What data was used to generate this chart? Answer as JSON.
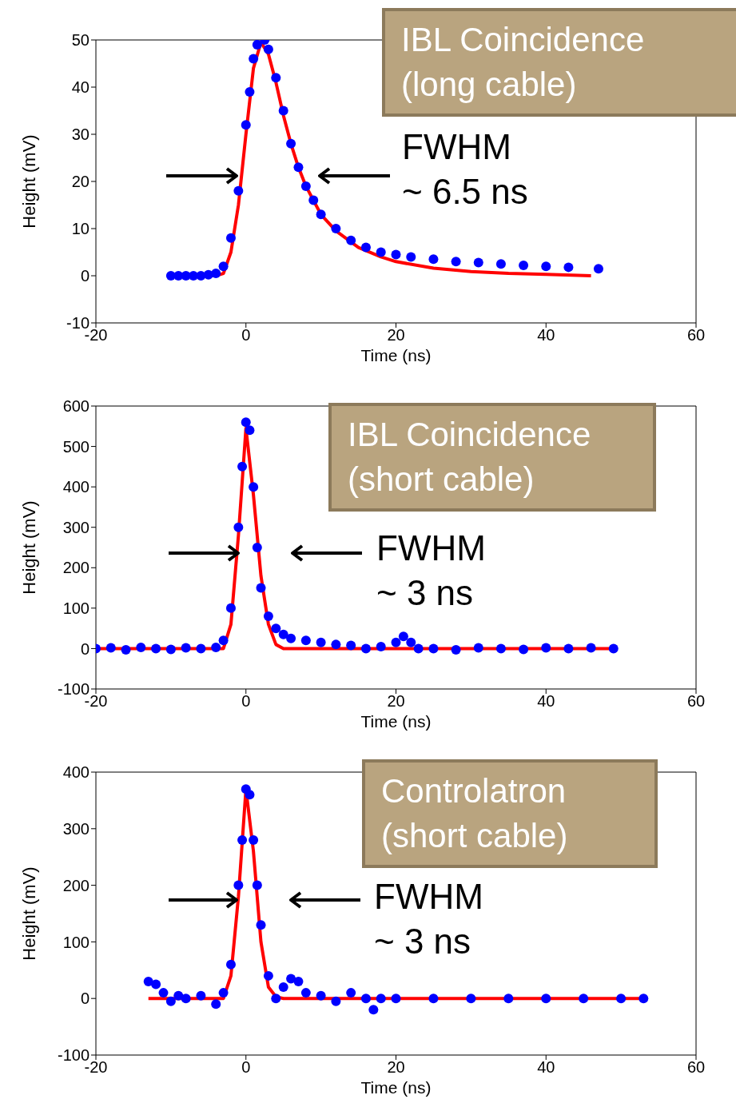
{
  "chart_data": [
    {
      "type": "scatter",
      "xlabel": "Time (ns)",
      "ylabel": "Height (mV)",
      "xlim": [
        -20,
        60
      ],
      "xticks": [
        -20,
        0,
        20,
        40,
        60
      ],
      "ylim": [
        -10,
        50
      ],
      "yticks": [
        -10,
        0,
        10,
        20,
        30,
        40,
        50
      ],
      "grid": false,
      "annotations": [
        "IBL Coincidence\n(long cable)",
        "FWHM\n~ 6.5 ns"
      ],
      "series": [
        {
          "type": "scatter",
          "color": "#0000ff",
          "marker": "circle",
          "x": [
            -10,
            -9,
            -8,
            -7,
            -6,
            -5,
            -4,
            -3,
            -2,
            -1,
            0,
            0.5,
            1,
            1.5,
            2.5,
            3,
            4,
            5,
            6,
            7,
            8,
            9,
            10,
            12,
            14,
            16,
            18,
            20,
            22,
            25,
            28,
            31,
            34,
            37,
            40,
            43,
            47
          ],
          "values": [
            0,
            0,
            0,
            0,
            0,
            0.2,
            0.5,
            2,
            8,
            18,
            32,
            39,
            46,
            49,
            50,
            48,
            42,
            35,
            28,
            23,
            19,
            16,
            13,
            10,
            7.5,
            6,
            5,
            4.5,
            4,
            3.5,
            3,
            2.8,
            2.5,
            2.2,
            2,
            1.8,
            1.5
          ]
        },
        {
          "type": "line",
          "color": "#ff0000",
          "marker": "none",
          "x": [
            -10,
            -4,
            -3,
            -2,
            -1,
            0,
            1,
            2,
            3,
            4,
            5,
            6,
            7,
            8,
            10,
            12,
            15,
            18,
            20,
            25,
            30,
            35,
            40,
            46
          ],
          "values": [
            0,
            0,
            0.5,
            5,
            15,
            30,
            44,
            49.5,
            47,
            41,
            34,
            28,
            23,
            19,
            13,
            9.5,
            6,
            4,
            3,
            1.6,
            0.9,
            0.5,
            0.3,
            0
          ]
        }
      ]
    },
    {
      "type": "scatter",
      "xlabel": "Time (ns)",
      "ylabel": "Height (mV)",
      "xlim": [
        -20,
        60
      ],
      "xticks": [
        -20,
        0,
        20,
        40,
        60
      ],
      "ylim": [
        -100,
        600
      ],
      "yticks": [
        -100,
        0,
        100,
        200,
        300,
        400,
        500,
        600
      ],
      "grid": false,
      "annotations": [
        "IBL Coincidence\n(short cable)",
        "FWHM\n~ 3 ns"
      ],
      "series": [
        {
          "type": "scatter",
          "color": "#0000ff",
          "marker": "circle",
          "x": [
            -20,
            -18,
            -16,
            -14,
            -12,
            -10,
            -8,
            -6,
            -4,
            -3,
            -2,
            -1,
            -0.5,
            0,
            0.5,
            1,
            1.5,
            2,
            3,
            4,
            5,
            6,
            8,
            10,
            12,
            14,
            16,
            18,
            20,
            21,
            22,
            23,
            25,
            28,
            31,
            34,
            37,
            40,
            43,
            46,
            49
          ],
          "values": [
            0,
            2,
            -3,
            3,
            0,
            -2,
            2,
            0,
            3,
            20,
            100,
            300,
            450,
            560,
            540,
            400,
            250,
            150,
            80,
            50,
            35,
            25,
            20,
            15,
            10,
            8,
            0,
            5,
            15,
            30,
            15,
            0,
            0,
            -3,
            2,
            0,
            -2,
            2,
            0,
            2,
            0
          ]
        },
        {
          "type": "line",
          "color": "#ff0000",
          "marker": "none",
          "x": [
            -20,
            -3,
            -2,
            -1,
            0,
            1,
            2,
            3,
            4,
            5,
            49
          ],
          "values": [
            0,
            0,
            60,
            280,
            545,
            380,
            180,
            60,
            10,
            0,
            0
          ]
        }
      ]
    },
    {
      "type": "scatter",
      "xlabel": "Time (ns)",
      "ylabel": "Height (mV)",
      "xlim": [
        -20,
        60
      ],
      "xticks": [
        -20,
        0,
        20,
        40,
        60
      ],
      "ylim": [
        -100,
        400
      ],
      "yticks": [
        -100,
        0,
        100,
        200,
        300,
        400
      ],
      "grid": false,
      "annotations": [
        "Controlatron\n(short cable)",
        "FWHM\n~ 3 ns"
      ],
      "series": [
        {
          "type": "scatter",
          "color": "#0000ff",
          "marker": "circle",
          "x": [
            -13,
            -12,
            -11,
            -10,
            -9,
            -8,
            -6,
            -4,
            -3,
            -2,
            -1,
            -0.5,
            0,
            0.5,
            1,
            1.5,
            2,
            3,
            4,
            5,
            6,
            7,
            8,
            10,
            12,
            14,
            16,
            17,
            18,
            20,
            25,
            30,
            35,
            40,
            45,
            50,
            53
          ],
          "values": [
            30,
            25,
            10,
            -5,
            5,
            0,
            5,
            -10,
            10,
            60,
            200,
            280,
            370,
            360,
            280,
            200,
            130,
            40,
            0,
            20,
            35,
            30,
            10,
            5,
            -5,
            10,
            0,
            -20,
            0,
            0,
            0,
            0,
            0,
            0,
            0,
            0,
            0
          ]
        },
        {
          "type": "line",
          "color": "#ff0000",
          "marker": "none",
          "x": [
            -13,
            -3,
            -2,
            -1,
            0,
            1,
            2,
            3,
            4,
            5,
            53
          ],
          "values": [
            0,
            0,
            40,
            180,
            370,
            260,
            100,
            20,
            3,
            0,
            0
          ]
        }
      ]
    }
  ]
}
